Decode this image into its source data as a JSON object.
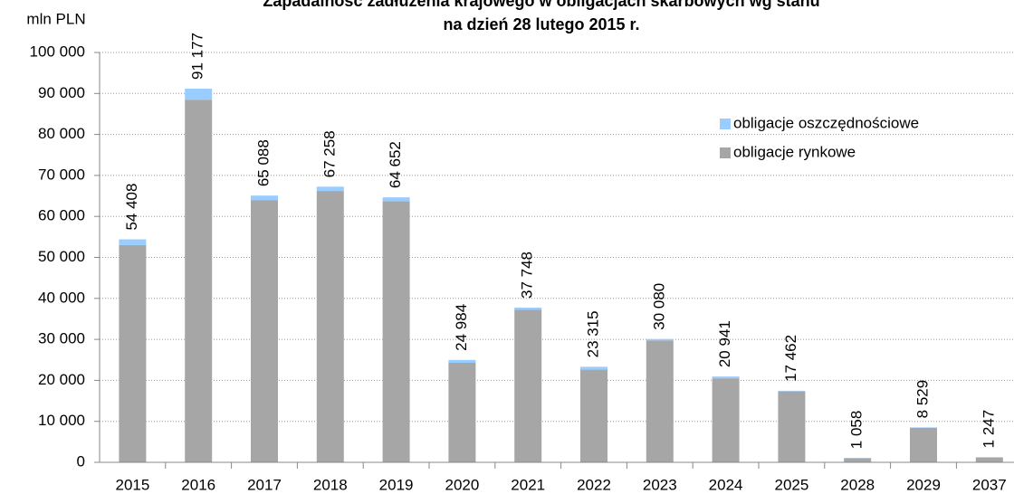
{
  "chart_data": {
    "type": "stacked_bar",
    "title": "Zapadalność zadłużenia krajowego w obligacjach skarbowych wg stanu",
    "subtitle": "na dzień 28 lutego 2015 r.",
    "y_label": "mln PLN",
    "categories": [
      "2015",
      "2016",
      "2017",
      "2018",
      "2019",
      "2020",
      "2021",
      "2022",
      "2023",
      "2024",
      "2025",
      "2028",
      "2029",
      "2037"
    ],
    "series": [
      {
        "name": "obligacje rynkowe",
        "color": "#a6a6a6",
        "values": [
          53008,
          88477,
          63988,
          66208,
          63702,
          24284,
          37198,
          22615,
          29700,
          20501,
          17302,
          1000,
          8400,
          1200
        ]
      },
      {
        "name": "obligacje oszczędnościowe",
        "color": "#99ccff",
        "values": [
          1400,
          2700,
          1100,
          1050,
          950,
          700,
          550,
          700,
          380,
          440,
          160,
          58,
          129,
          47
        ]
      }
    ],
    "totals": [
      54408,
      91177,
      65088,
      67258,
      64652,
      24984,
      37748,
      23315,
      30080,
      20941,
      17462,
      1058,
      8529,
      1247
    ],
    "total_labels": [
      "54 408",
      "91 177",
      "65 088",
      "67 258",
      "64 652",
      "24 984",
      "37 748",
      "23 315",
      "30 080",
      "20 941",
      "17 462",
      "1 058",
      "8 529",
      "1 247"
    ],
    "ylim": [
      0,
      100000
    ],
    "yticks": [
      0,
      {
        "value": 10000,
        "label": "10 000"
      },
      {
        "value": 20000,
        "label": "20 000"
      },
      {
        "value": 30000,
        "label": "30 000"
      },
      {
        "value": 40000,
        "label": "40 000"
      },
      {
        "value": 50000,
        "label": "50 000"
      },
      {
        "value": 60000,
        "label": "60 000"
      },
      {
        "value": 70000,
        "label": "70 000"
      },
      {
        "value": 80000,
        "label": "80 000"
      },
      {
        "value": 90000,
        "label": "90 000"
      },
      {
        "value": 100000,
        "label": "100 000"
      }
    ],
    "grid": true,
    "legend": "upper right"
  }
}
